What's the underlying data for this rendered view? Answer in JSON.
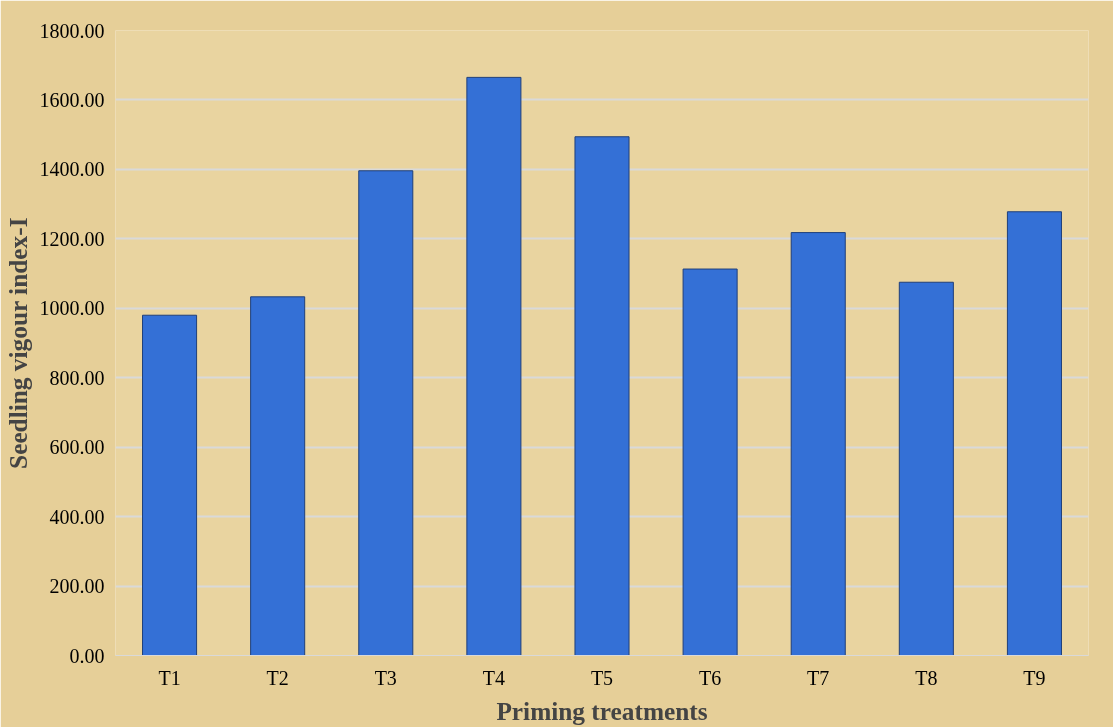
{
  "chart_data": {
    "type": "bar",
    "xlabel": "Priming treatments",
    "ylabel": "Seedling vigour index-I",
    "categories": [
      "T1",
      "T2",
      "T3",
      "T4",
      "T5",
      "T6",
      "T7",
      "T8",
      "T9"
    ],
    "values": [
      980,
      1033,
      1396,
      1665,
      1494,
      1113,
      1218,
      1075,
      1278
    ],
    "color": "#3470d6",
    "ylim": [
      0,
      1800
    ],
    "yticks": [
      {
        "value": 0,
        "label": "0.00"
      },
      {
        "value": 200,
        "label": "200.00"
      },
      {
        "value": 400,
        "label": "400.00"
      },
      {
        "value": 600,
        "label": "600.00"
      },
      {
        "value": 800,
        "label": "800.00"
      },
      {
        "value": 1000,
        "label": "1000.00"
      },
      {
        "value": 1200,
        "label": "1200.00"
      },
      {
        "value": 1400,
        "label": "1400.00"
      },
      {
        "value": 1600,
        "label": "1600.00"
      },
      {
        "value": 1800,
        "label": "1800.00"
      }
    ],
    "grid": "y"
  }
}
